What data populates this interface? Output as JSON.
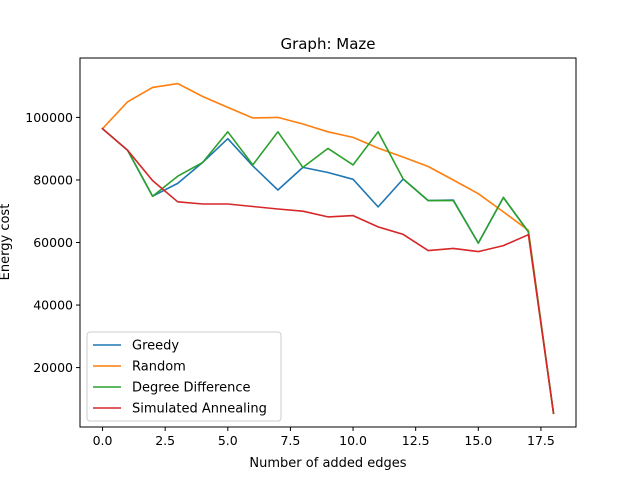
{
  "chart_data": {
    "type": "line",
    "title": "Graph: Maze",
    "xlabel": "Number of added edges",
    "ylabel": "Energy cost",
    "xlim": [
      -0.9,
      18.9
    ],
    "ylim": [
      1000,
      119000
    ],
    "xticks": [
      0,
      2.5,
      5,
      7.5,
      10,
      12.5,
      15,
      17.5
    ],
    "xtick_labels": [
      "0.0",
      "2.5",
      "5.0",
      "7.5",
      "10.0",
      "12.5",
      "15.0",
      "17.5"
    ],
    "yticks": [
      20000,
      40000,
      60000,
      80000,
      100000
    ],
    "ytick_labels": [
      "20000",
      "40000",
      "60000",
      "80000",
      "100000"
    ],
    "grid": false,
    "legend_position": "lower-left",
    "x": [
      0,
      1,
      2,
      3,
      4,
      5,
      6,
      7,
      8,
      9,
      10,
      11,
      12,
      13,
      14,
      15,
      16,
      17,
      18
    ],
    "series": [
      {
        "name": "Greedy",
        "color": "#1f77b4",
        "values": [
          96400,
          89500,
          74800,
          78900,
          85600,
          93200,
          84500,
          76800,
          84000,
          82400,
          80200,
          71400,
          80300,
          73400,
          73600,
          59800,
          74400,
          63400,
          5400
        ]
      },
      {
        "name": "Random",
        "color": "#ff7f0e",
        "values": [
          96400,
          105000,
          109600,
          110800,
          106700,
          103200,
          99800,
          100000,
          97900,
          95400,
          93600,
          90200,
          87300,
          84300,
          80000,
          75600,
          69800,
          63900,
          5400
        ]
      },
      {
        "name": "Degree Difference",
        "color": "#2ca02c",
        "values": [
          96400,
          89500,
          74800,
          81200,
          85600,
          95400,
          84800,
          95400,
          84000,
          90100,
          84800,
          95400,
          80300,
          73400,
          73400,
          59800,
          74400,
          63400,
          5400
        ]
      },
      {
        "name": "Simulated Annealing",
        "color": "#d62728",
        "values": [
          96400,
          89500,
          79800,
          73000,
          72300,
          72300,
          71500,
          70700,
          70000,
          68200,
          68600,
          65000,
          62600,
          57400,
          58100,
          57100,
          59000,
          62500,
          5400
        ]
      }
    ]
  }
}
